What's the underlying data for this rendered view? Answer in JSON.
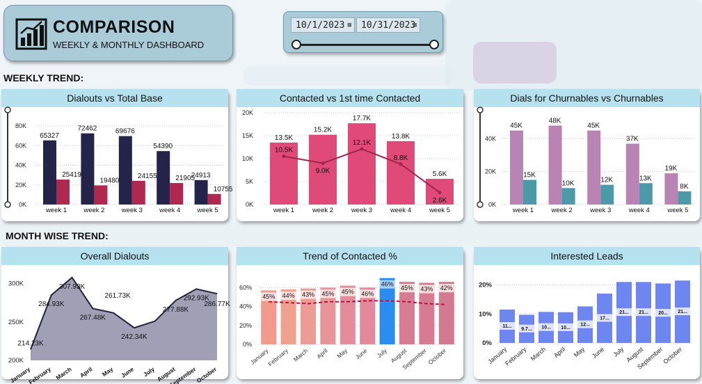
{
  "header": {
    "title": "COMPARISON",
    "subtitle": "WEEKLY & MONTHLY DASHBOARD"
  },
  "date_filter": {
    "start": "10/1/2023",
    "end": "10/31/2023"
  },
  "sections": {
    "weekly": "WEEKLY TREND:",
    "monthly": "MONTH WISE TREND:"
  },
  "colors": {
    "header_bg": "#a9ccd8",
    "card_header": "#b6e2f0",
    "navy": "#24244a",
    "crimson": "#b0284f",
    "pink": "#e04a78",
    "mauve": "#b984b4",
    "teal": "#4b9aa8",
    "slate": "#8f8ea8",
    "blue": "#6e86ef",
    "highlight": "#2b8df0"
  },
  "charts": {
    "dialouts_vs_total": {
      "title": "Dialouts vs Total Base",
      "chart_data": {
        "type": "bar",
        "categories": [
          "week 1",
          "week 2",
          "week 3",
          "week 4",
          "week 5"
        ],
        "series": [
          {
            "values": [
              65327,
              72462,
              69676,
              54390,
              24913
            ],
            "labels": [
              "65327",
              "72462",
              "69676",
              "54390",
              "24913"
            ]
          },
          {
            "values": [
              25419,
              19480,
              24155,
              21905,
              10755
            ],
            "labels": [
              "25419",
              "19480",
              "24155",
              "21905",
              "10755"
            ]
          }
        ],
        "yticks": [
          "0K",
          "20K",
          "40K",
          "60K",
          "80K"
        ],
        "ylim": [
          0,
          85000
        ]
      }
    },
    "contacted_vs_first": {
      "title": "Contacted vs 1st time Contacted",
      "chart_data": {
        "type": "bar",
        "categories": [
          "week 1",
          "week 2",
          "week 3",
          "week 4",
          "week 5"
        ],
        "series": [
          {
            "type": "bar",
            "values": [
              13500,
              15200,
              17700,
              13800,
              5600
            ],
            "labels": [
              "13.5K",
              "15.2K",
              "17.7K",
              "13.8K",
              "5.6K"
            ]
          },
          {
            "type": "line",
            "values": [
              10500,
              9000,
              12100,
              8800,
              2600
            ],
            "labels": [
              "10.5K",
              "9.0K",
              "12.1K",
              "8.8K",
              "2.6K"
            ]
          }
        ],
        "yticks": [
          "0K",
          "5K",
          "10K",
          "15K",
          "20K"
        ],
        "ylim": [
          0,
          20000
        ]
      }
    },
    "churnables": {
      "title": "Dials for Churnables vs Churnables",
      "chart_data": {
        "type": "bar",
        "categories": [
          "week 1",
          "week 2",
          "week 3",
          "week 4",
          "week 5"
        ],
        "series": [
          {
            "values": [
              45000,
              48000,
              45000,
              37000,
              19000
            ],
            "labels": [
              "45K",
              "48K",
              "45K",
              "37K",
              "19K"
            ]
          },
          {
            "values": [
              15000,
              10000,
              12000,
              13000,
              8000
            ],
            "labels": [
              "15K",
              "10K",
              "12K",
              "13K",
              "8K"
            ]
          }
        ],
        "yticks": [
          "0K",
          "20K",
          "40K"
        ],
        "ylim": [
          0,
          55000
        ]
      }
    },
    "overall_dialouts": {
      "title": "Overall Dialouts",
      "chart_data": {
        "type": "area",
        "categories": [
          "January",
          "February",
          "March",
          "April",
          "May",
          "June",
          "July",
          "August",
          "September",
          "October"
        ],
        "values": [
          214230,
          284930,
          307930,
          267480,
          261730,
          242340,
          251000,
          277880,
          292930,
          286770
        ],
        "labels": [
          "214.23K",
          "284.93K",
          "307.93K",
          "267.48K",
          "261.73K",
          "242.34K",
          "",
          "277.88K",
          "292.93K",
          "286.77K"
        ],
        "yticks": [
          "200K",
          "250K",
          "300K"
        ],
        "ylim": [
          200000,
          315000
        ]
      }
    },
    "contacted_pct": {
      "title": "Trend of Contacted %",
      "chart_data": {
        "type": "bar",
        "categories": [
          "January",
          "February",
          "March",
          "April",
          "May",
          "June",
          "July",
          "August",
          "September",
          "October"
        ],
        "values": [
          57,
          58,
          59,
          60,
          62,
          60,
          70,
          66,
          65,
          66
        ],
        "line_values": [
          45,
          44,
          43,
          45,
          45,
          46,
          46,
          45,
          43,
          42
        ],
        "labels": [
          "45%",
          "44%",
          "43%",
          "45%",
          "45%",
          "46%",
          "46%",
          "45%",
          "43%",
          "42%"
        ],
        "highlight_index": 6,
        "yticks": [
          "0%",
          "20%",
          "40%",
          "60%"
        ],
        "ylim": [
          0,
          72
        ]
      }
    },
    "interested_leads": {
      "title": "Interested Leads",
      "chart_data": {
        "type": "bar",
        "categories": [
          "January",
          "February",
          "March",
          "April",
          "May",
          "June",
          "July",
          "August",
          "September",
          "October"
        ],
        "values": [
          11.5,
          9.7,
          10.7,
          10.6,
          12.6,
          17.0,
          21.0,
          21.0,
          20.5,
          21.5
        ],
        "labels": [
          "11...",
          "9.7...",
          "10...",
          "10...",
          "12...",
          "17...",
          "21...",
          "21...",
          "20...",
          "21..."
        ],
        "yticks": [
          "0%",
          "10%",
          "20%"
        ],
        "ylim": [
          0,
          23
        ]
      }
    }
  }
}
